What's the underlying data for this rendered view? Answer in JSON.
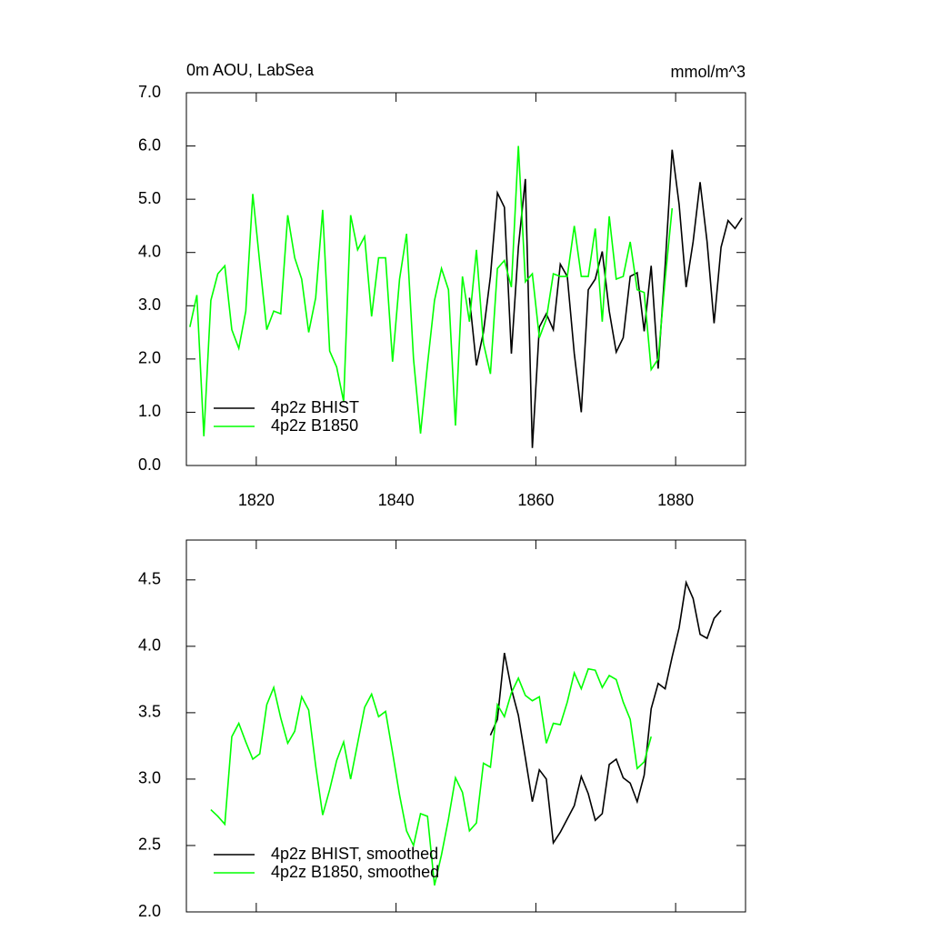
{
  "chart_data": [
    {
      "type": "line",
      "title": "0m AOU, LabSea",
      "units": "mmol/m^3",
      "xlim": [
        1810,
        1890
      ],
      "xticks": [
        1820,
        1840,
        1860,
        1880
      ],
      "ylim": [
        0,
        7
      ],
      "yticks": [
        {
          "value": 0,
          "label": "0.0"
        },
        {
          "value": 1,
          "label": "1.0"
        },
        {
          "value": 2,
          "label": "2.0"
        },
        {
          "value": 3,
          "label": "3.0"
        },
        {
          "value": 4,
          "label": "4.0"
        },
        {
          "value": 5,
          "label": "5.0"
        },
        {
          "value": 6,
          "label": "6.0"
        },
        {
          "value": 7,
          "label": "7.0"
        }
      ],
      "legend": "lower left",
      "series": [
        {
          "name": "4p2z BHIST",
          "color": "#000000",
          "x": [
            1850.5,
            1851.5,
            1852.5,
            1853.5,
            1854.5,
            1855.5,
            1856.5,
            1857.5,
            1858.5,
            1859.5,
            1860.5,
            1861.5,
            1862.5,
            1863.5,
            1864.5,
            1865.5,
            1866.5,
            1867.5,
            1868.5,
            1869.5,
            1870.5,
            1871.5,
            1872.5,
            1873.5,
            1874.5,
            1875.5,
            1876.5,
            1877.5,
            1878.5,
            1879.5,
            1880.5,
            1881.5,
            1882.5,
            1883.5,
            1884.5,
            1885.5,
            1886.5,
            1887.5,
            1888.5,
            1889.5
          ],
          "values": [
            3.15,
            1.88,
            2.5,
            3.55,
            5.12,
            4.85,
            2.1,
            4.1,
            5.38,
            0.33,
            2.6,
            2.85,
            2.55,
            3.78,
            3.55,
            2.1,
            1.0,
            3.3,
            3.5,
            4.02,
            2.9,
            2.13,
            2.4,
            3.55,
            3.62,
            2.52,
            3.75,
            1.82,
            3.75,
            5.93,
            4.9,
            3.35,
            4.2,
            5.32,
            4.2,
            2.67,
            4.1,
            4.6,
            4.45,
            4.65
          ]
        },
        {
          "name": "4p2z B1850",
          "color": "#00ff00",
          "x": [
            1810.5,
            1811.5,
            1812.5,
            1813.5,
            1814.5,
            1815.5,
            1816.5,
            1817.5,
            1818.5,
            1819.5,
            1820.5,
            1821.5,
            1822.5,
            1823.5,
            1824.5,
            1825.5,
            1826.5,
            1827.5,
            1828.5,
            1829.5,
            1830.5,
            1831.5,
            1832.5,
            1833.5,
            1834.5,
            1835.5,
            1836.5,
            1837.5,
            1838.5,
            1839.5,
            1840.5,
            1841.5,
            1842.5,
            1843.5,
            1844.5,
            1845.5,
            1846.5,
            1847.5,
            1848.5,
            1849.5,
            1850.5,
            1851.5,
            1852.5,
            1853.5,
            1854.5,
            1855.5,
            1856.5,
            1857.5,
            1858.5,
            1859.5,
            1860.5,
            1861.5,
            1862.5,
            1863.5,
            1864.5,
            1865.5,
            1866.5,
            1867.5,
            1868.5,
            1869.5,
            1870.5,
            1871.5,
            1872.5,
            1873.5,
            1874.5,
            1875.5,
            1876.5,
            1877.5,
            1878.5,
            1879.5
          ],
          "values": [
            2.6,
            3.2,
            0.55,
            3.1,
            3.6,
            3.75,
            2.55,
            2.2,
            2.9,
            5.1,
            3.8,
            2.55,
            2.9,
            2.85,
            4.7,
            3.9,
            3.5,
            2.5,
            3.15,
            4.8,
            2.15,
            1.85,
            1.2,
            4.7,
            4.05,
            4.3,
            2.8,
            3.9,
            3.9,
            1.95,
            3.5,
            4.35,
            2.0,
            0.6,
            1.9,
            3.1,
            3.7,
            3.3,
            0.75,
            3.55,
            2.7,
            4.05,
            2.3,
            1.72,
            3.7,
            3.85,
            3.35,
            6.0,
            3.45,
            3.6,
            2.4,
            2.75,
            3.6,
            3.55,
            3.55,
            4.5,
            3.55,
            3.55,
            4.45,
            2.7,
            4.68,
            3.5,
            3.55,
            4.2,
            3.3,
            3.25,
            1.8,
            2.0,
            3.5,
            4.83
          ]
        }
      ]
    },
    {
      "type": "line",
      "xlim": [
        1810,
        1890
      ],
      "xticks": [
        1820,
        1840,
        1860,
        1880
      ],
      "ylim": [
        2.0,
        4.8
      ],
      "yticks": [
        {
          "value": 2.0,
          "label": "2.0"
        },
        2.5,
        {
          "value": 3.0,
          "label": "3.0"
        },
        3.5,
        {
          "value": 4.0,
          "label": "4.0"
        },
        4.5
      ],
      "legend": "lower left",
      "series": [
        {
          "name": "4p2z BHIST, smoothed",
          "color": "#000000",
          "x": [
            1853.5,
            1854.5,
            1855.5,
            1856.5,
            1857.5,
            1858.5,
            1859.5,
            1860.5,
            1861.5,
            1862.5,
            1863.5,
            1864.5,
            1865.5,
            1866.5,
            1867.5,
            1868.5,
            1869.5,
            1870.5,
            1871.5,
            1872.5,
            1873.5,
            1874.5,
            1875.5,
            1876.5,
            1877.5,
            1878.5,
            1879.5,
            1880.5,
            1881.5,
            1882.5,
            1883.5,
            1884.5,
            1885.5,
            1886.5
          ],
          "values": [
            3.33,
            3.45,
            3.95,
            3.68,
            3.48,
            3.16,
            2.83,
            3.07,
            3.0,
            2.52,
            2.6,
            2.7,
            2.8,
            3.02,
            2.89,
            2.69,
            2.74,
            3.11,
            3.15,
            3.01,
            2.97,
            2.83,
            3.03,
            3.53,
            3.72,
            3.68,
            3.92,
            4.14,
            4.48,
            4.36,
            4.09,
            4.06,
            4.21,
            4.27
          ]
        },
        {
          "name": "4p2z B1850, smoothed",
          "color": "#00ff00",
          "x": [
            1813.5,
            1814.5,
            1815.5,
            1816.5,
            1817.5,
            1818.5,
            1819.5,
            1820.5,
            1821.5,
            1822.5,
            1823.5,
            1824.5,
            1825.5,
            1826.5,
            1827.5,
            1828.5,
            1829.5,
            1830.5,
            1831.5,
            1832.5,
            1833.5,
            1834.5,
            1835.5,
            1836.5,
            1837.5,
            1838.5,
            1839.5,
            1840.5,
            1841.5,
            1842.5,
            1843.5,
            1844.5,
            1845.5,
            1846.5,
            1847.5,
            1848.5,
            1849.5,
            1850.5,
            1851.5,
            1852.5,
            1853.5,
            1854.5,
            1855.5,
            1856.5,
            1857.5,
            1858.5,
            1859.5,
            1860.5,
            1861.5,
            1862.5,
            1863.5,
            1864.5,
            1865.5,
            1866.5,
            1867.5,
            1868.5,
            1869.5,
            1870.5,
            1871.5,
            1872.5,
            1873.5,
            1874.5,
            1875.5,
            1876.5
          ],
          "values": [
            2.77,
            2.72,
            2.66,
            3.32,
            3.42,
            3.28,
            3.15,
            3.19,
            3.56,
            3.69,
            3.46,
            3.27,
            3.36,
            3.62,
            3.52,
            3.1,
            2.73,
            2.92,
            3.14,
            3.28,
            3.0,
            3.27,
            3.54,
            3.64,
            3.47,
            3.51,
            3.2,
            2.88,
            2.61,
            2.5,
            2.74,
            2.72,
            2.2,
            2.43,
            2.7,
            3.01,
            2.9,
            2.61,
            2.67,
            3.12,
            3.09,
            3.56,
            3.47,
            3.65,
            3.76,
            3.63,
            3.59,
            3.62,
            3.27,
            3.42,
            3.41,
            3.58,
            3.8,
            3.68,
            3.83,
            3.82,
            3.69,
            3.78,
            3.75,
            3.58,
            3.45,
            3.08,
            3.13,
            3.32
          ]
        }
      ]
    }
  ]
}
